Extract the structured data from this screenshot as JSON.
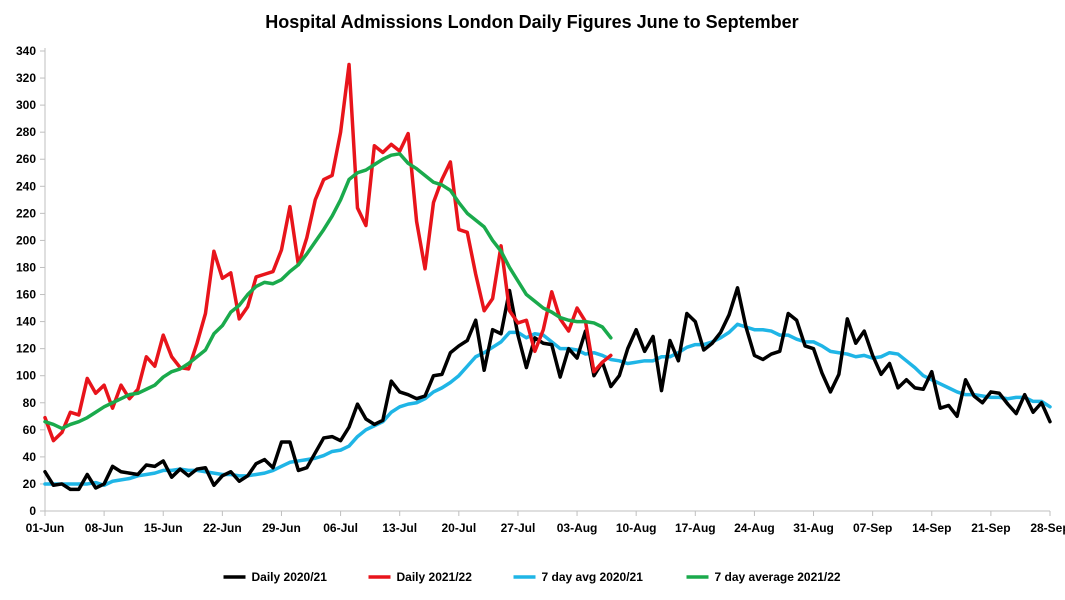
{
  "chart_data": {
    "type": "line",
    "title": "Hospital Admissions London Daily Figures June to September",
    "xlabel": "",
    "ylabel": "",
    "ylim": [
      0,
      340
    ],
    "y_ticks": [
      0,
      20,
      40,
      60,
      80,
      100,
      120,
      140,
      160,
      180,
      200,
      220,
      240,
      260,
      280,
      300,
      320,
      340
    ],
    "x_tick_labels": [
      "01-Jun",
      "08-Jun",
      "15-Jun",
      "22-Jun",
      "29-Jun",
      "06-Jul",
      "13-Jul",
      "20-Jul",
      "27-Jul",
      "03-Aug",
      "10-Aug",
      "17-Aug",
      "24-Aug",
      "31-Aug",
      "07-Sep",
      "14-Sep",
      "21-Sep",
      "28-Sep"
    ],
    "x_tick_step_days": 7,
    "legend_position": "bottom",
    "series": [
      {
        "name": "Daily 2020/21",
        "color": "#000000",
        "values": [
          29,
          19,
          20,
          16,
          16,
          27,
          17,
          20,
          33,
          29,
          28,
          27,
          34,
          33,
          37,
          25,
          31,
          26,
          31,
          32,
          19,
          26,
          29,
          22,
          26,
          35,
          38,
          32,
          51,
          51,
          30,
          32,
          43,
          54,
          55,
          52,
          62,
          79,
          68,
          64,
          67,
          96,
          88,
          86,
          83,
          85,
          100,
          101,
          117,
          122,
          126,
          141,
          104,
          134,
          131,
          163,
          130,
          106,
          128,
          124,
          123,
          99,
          120,
          113,
          133,
          100,
          110,
          92,
          100,
          120,
          134,
          118,
          129,
          89,
          126,
          111,
          146,
          140,
          119,
          124,
          132,
          145,
          165,
          136,
          115,
          112,
          116,
          118,
          146,
          141,
          122,
          120,
          102,
          88,
          101,
          142,
          124,
          133,
          115,
          101,
          109,
          91,
          97,
          91,
          90,
          103,
          76,
          78,
          70,
          97,
          85,
          80,
          88,
          87,
          79,
          72,
          86,
          73,
          80,
          66
        ]
      },
      {
        "name": "Daily 2021/22",
        "color": "#e8141b",
        "values": [
          69,
          52,
          58,
          73,
          71,
          98,
          87,
          93,
          76,
          93,
          83,
          90,
          114,
          107,
          130,
          114,
          106,
          105,
          124,
          146,
          192,
          172,
          176,
          142,
          151,
          173,
          175,
          177,
          193,
          225,
          182,
          202,
          230,
          245,
          248,
          280,
          330,
          224,
          211,
          270,
          265,
          271,
          266,
          279,
          214,
          179,
          228,
          245,
          258,
          208,
          206,
          175,
          148,
          157,
          196,
          148,
          139,
          141,
          118,
          134,
          162,
          142,
          133,
          150,
          140,
          103,
          110,
          115
        ]
      },
      {
        "name": "7 day avg 2020/21",
        "color": "#1fb5e6",
        "values": [
          20,
          20,
          20,
          20,
          20,
          20,
          21,
          19,
          22,
          23,
          24,
          26,
          27,
          28,
          30,
          30,
          31,
          30,
          30,
          29,
          28,
          27,
          27,
          26,
          26,
          27,
          28,
          30,
          33,
          36,
          37,
          38,
          39,
          41,
          44,
          45,
          48,
          55,
          60,
          63,
          66,
          73,
          77,
          79,
          80,
          83,
          88,
          91,
          95,
          100,
          107,
          114,
          117,
          121,
          125,
          132,
          132,
          128,
          131,
          130,
          125,
          120,
          120,
          119,
          116,
          117,
          115,
          112,
          111,
          109,
          110,
          111,
          111,
          114,
          114,
          117,
          121,
          123,
          123,
          125,
          128,
          132,
          138,
          136,
          134,
          134,
          133,
          130,
          130,
          127,
          125,
          125,
          122,
          118,
          117,
          116,
          114,
          115,
          113,
          114,
          117,
          116,
          111,
          106,
          100,
          97,
          94,
          91,
          88,
          86,
          86,
          85,
          84,
          84,
          83,
          84,
          84,
          81,
          81,
          77
        ]
      },
      {
        "name": "7 day average 2021/22",
        "color": "#1aaa4c",
        "values": [
          66,
          64,
          61,
          64,
          66,
          69,
          73,
          77,
          80,
          83,
          86,
          87,
          90,
          93,
          99,
          103,
          105,
          109,
          114,
          119,
          131,
          137,
          147,
          152,
          160,
          166,
          169,
          168,
          171,
          177,
          182,
          190,
          199,
          208,
          218,
          230,
          245,
          250,
          252,
          256,
          260,
          263,
          264,
          257,
          253,
          248,
          243,
          241,
          237,
          228,
          220,
          215,
          210,
          200,
          192,
          180,
          170,
          160,
          155,
          150,
          147,
          143,
          141,
          140,
          140,
          139,
          136,
          128
        ]
      }
    ]
  }
}
